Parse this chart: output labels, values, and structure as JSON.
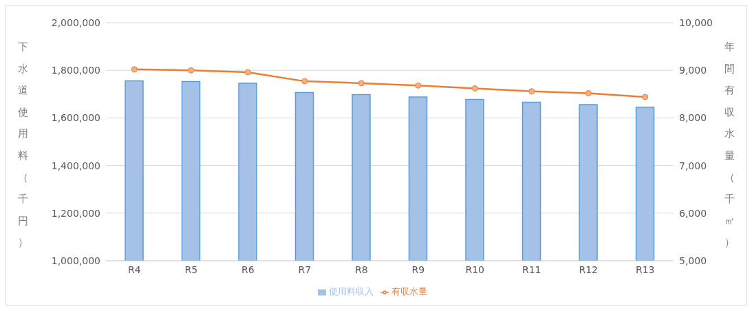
{
  "chart_data": {
    "type": "bar",
    "categories": [
      "R4",
      "R5",
      "R6",
      "R7",
      "R8",
      "R9",
      "R10",
      "R11",
      "R12",
      "R13"
    ],
    "series": [
      {
        "name": "使用料収入",
        "color": "#a4c2e8",
        "values": [
          1756000,
          1753000,
          1746000,
          1707000,
          1698000,
          1688000,
          1678000,
          1666000,
          1656000,
          1645000
        ]
      },
      {
        "name": "有収水量",
        "type": "line",
        "axis": "y2",
        "color": "#ed7d31",
        "marker": "circle",
        "values": [
          9020,
          9000,
          8960,
          8770,
          8730,
          8680,
          8620,
          8560,
          8520,
          8440
        ]
      }
    ],
    "ylabel": "下水道使用料（千円）",
    "y2label": "年間有収水量（千㎥）",
    "ylim": [
      1000000,
      2000000
    ],
    "yticks": [
      {
        "value": 1000000,
        "label": "1,000,000"
      },
      {
        "value": 1200000,
        "label": "1,200,000"
      },
      {
        "value": 1400000,
        "label": "1,400,000"
      },
      {
        "value": 1600000,
        "label": "1,600,000"
      },
      {
        "value": 1800000,
        "label": "1,800,000"
      },
      {
        "value": 2000000,
        "label": "2,000,000"
      }
    ],
    "y2lim": [
      5000,
      10000
    ],
    "y2ticks": [
      {
        "value": 5000,
        "label": "5,000"
      },
      {
        "value": 6000,
        "label": "6,000"
      },
      {
        "value": 7000,
        "label": "7,000"
      },
      {
        "value": 8000,
        "label": "8,000"
      },
      {
        "value": 9000,
        "label": "9,000"
      },
      {
        "value": 10000,
        "label": "10,000"
      }
    ],
    "grid": "y",
    "legend": "bottom"
  }
}
